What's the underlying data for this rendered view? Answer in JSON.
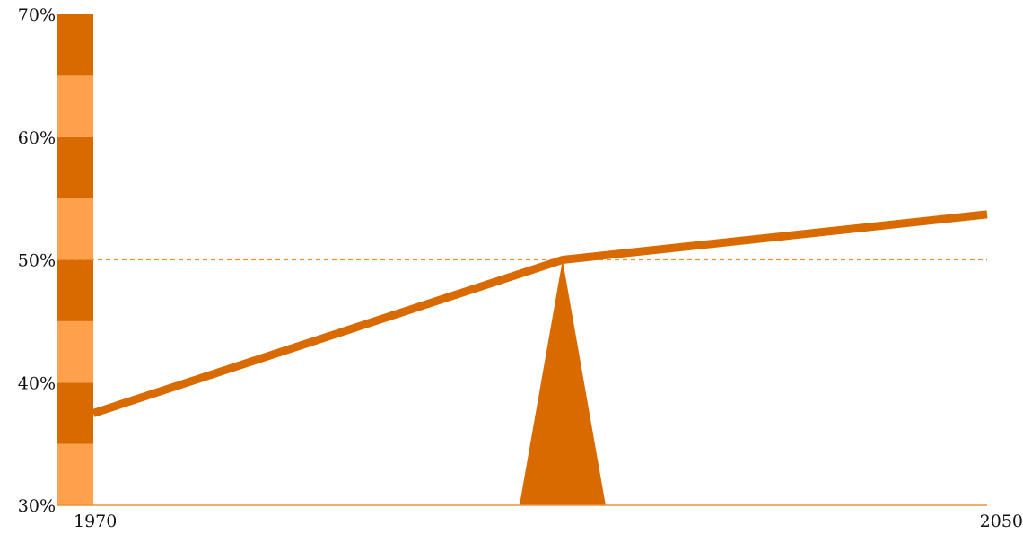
{
  "chart_data": {
    "type": "line",
    "x": [
      1970,
      2012,
      2050
    ],
    "series": [
      {
        "values": [
          37.5,
          50,
          53.7
        ],
        "color": "#d96a00"
      }
    ],
    "reference_line": {
      "y": 50,
      "style": "dashed",
      "color": "#f0903a"
    },
    "fulcrum": {
      "x": 2012,
      "y": 50,
      "color": "#d96a00"
    },
    "scale_bar": {
      "bands": [
        {
          "from": 30,
          "to": 35,
          "color": "#ffa04d"
        },
        {
          "from": 35,
          "to": 40,
          "color": "#d96a00"
        },
        {
          "from": 40,
          "to": 45,
          "color": "#ffa04d"
        },
        {
          "from": 45,
          "to": 50,
          "color": "#d96a00"
        },
        {
          "from": 50,
          "to": 55,
          "color": "#ffa04d"
        },
        {
          "from": 55,
          "to": 60,
          "color": "#d96a00"
        },
        {
          "from": 60,
          "to": 65,
          "color": "#ffa04d"
        },
        {
          "from": 65,
          "to": 70,
          "color": "#d96a00"
        }
      ]
    },
    "xlim": [
      1970,
      2050
    ],
    "ylim": [
      30,
      70
    ],
    "x_tick_labels": [
      "1970",
      "2050"
    ],
    "x_tick_values": [
      1970,
      2050
    ],
    "y_tick_labels": [
      "30%",
      "40%",
      "50%",
      "60%",
      "70%"
    ],
    "y_tick_values": [
      30,
      40,
      50,
      60,
      70
    ],
    "title": "",
    "xlabel": "",
    "ylabel": "",
    "grid": false,
    "axis_color": "#f0903a"
  }
}
